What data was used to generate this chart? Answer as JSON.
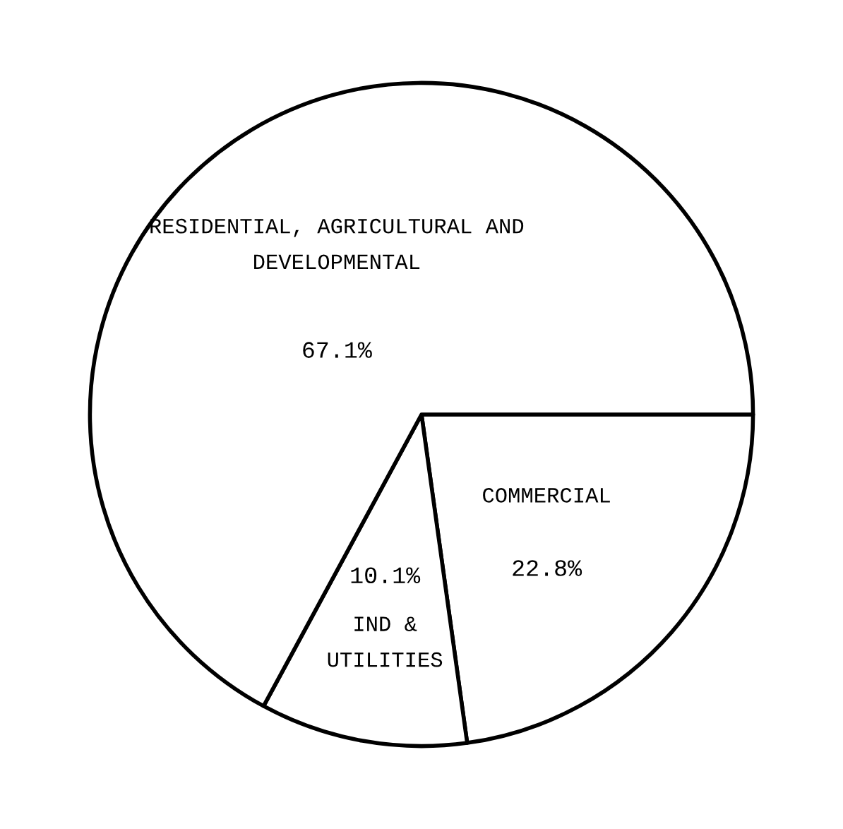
{
  "chart_data": {
    "type": "pie",
    "categories": [
      "COMMERCIAL",
      "IND &\nUTILITIES",
      "RESIDENTIAL, AGRICULTURAL AND\nDEVELOPMENTAL"
    ],
    "values": [
      22.8,
      10.1,
      67.1
    ],
    "value_labels": [
      "22.8%",
      "10.1%",
      "67.1%"
    ],
    "colors": [
      "#ffffff",
      "#ffffff",
      "#ffffff"
    ]
  }
}
